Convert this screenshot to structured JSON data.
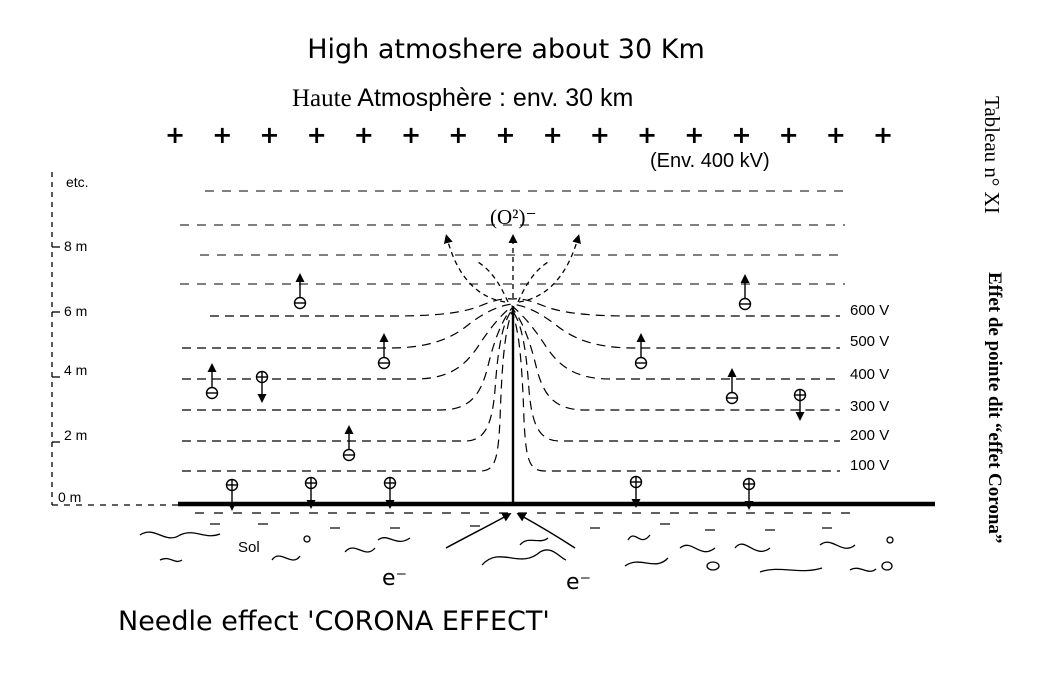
{
  "titles": {
    "english": "High atmoshere about 30 Km",
    "french_prefix": "Haute",
    "french_rest": "Atmosphère : env. 30 km",
    "caption": "Needle effect 'CORONA EFFECT'"
  },
  "annotations": {
    "env_voltage": "(Env. 400 kV)",
    "o2": "(O²)⁻",
    "sol": "Sol",
    "electron": "e⁻",
    "side_table": "Tableau n° XI",
    "side_effect": "Effet de pointe dit “effet Corona”"
  },
  "height_labels": [
    "etc.",
    "8 m",
    "6 m",
    "4 m",
    "2 m",
    "0 m"
  ],
  "voltage_labels": [
    "600 V",
    "500 V",
    "400 V",
    "300 V",
    "200 V",
    "100 V"
  ],
  "plus_sign": "+",
  "plus_count": 16,
  "colors": {
    "ink": "#000000",
    "background": "#ffffff"
  }
}
